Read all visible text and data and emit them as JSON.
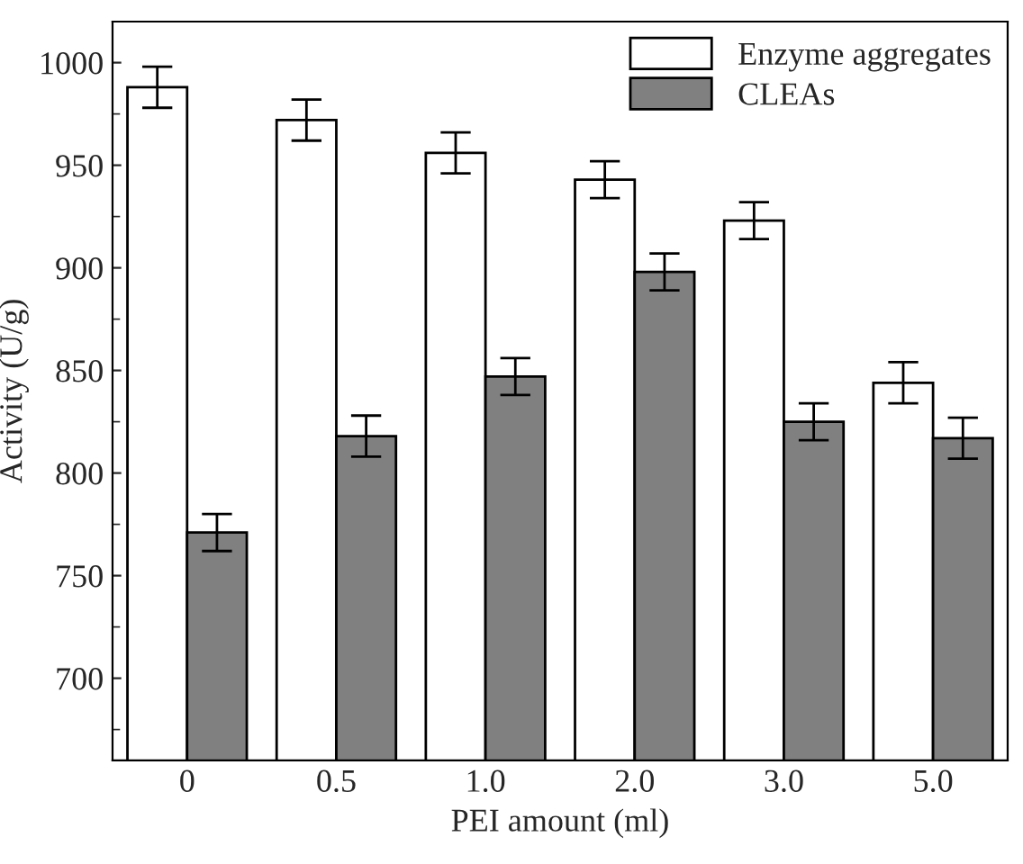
{
  "chart_data": {
    "type": "bar",
    "xlabel": "PEI amount (ml)",
    "ylabel": "Activity (U/g)",
    "categories": [
      "0",
      "0.5",
      "1.0",
      "2.0",
      "3.0",
      "5.0"
    ],
    "series": [
      {
        "name": "Enzyme aggregates",
        "color": "#ffffff",
        "values": [
          988,
          972,
          956,
          943,
          923,
          844
        ],
        "errors": [
          10,
          10,
          10,
          9,
          9,
          10
        ]
      },
      {
        "name": "CLEAs",
        "color": "#808080",
        "values": [
          771,
          818,
          847,
          898,
          825,
          817
        ],
        "errors": [
          9,
          10,
          9,
          9,
          9,
          10
        ]
      }
    ],
    "ylim": [
      660,
      1020
    ],
    "yticks": [
      700,
      750,
      800,
      850,
      900,
      950,
      1000
    ],
    "grid": false,
    "legend": "top right"
  }
}
